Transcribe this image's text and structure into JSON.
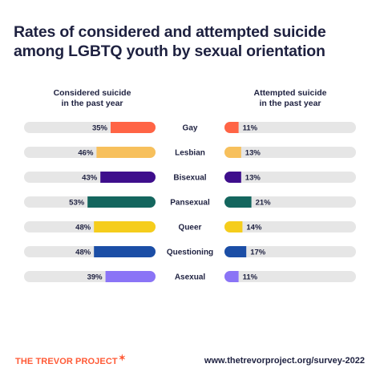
{
  "chart_data": {
    "type": "bar",
    "title": "Rates of considered and attempted suicide among LGBTQ youth by sexual orientation",
    "categories": [
      "Gay",
      "Lesbian",
      "Bisexual",
      "Pansexual",
      "Queer",
      "Questioning",
      "Asexual"
    ],
    "series": [
      {
        "name": "Considered suicide in the past year",
        "values": [
          35,
          46,
          43,
          53,
          48,
          48,
          39
        ],
        "labels": [
          "35%",
          "46%",
          "43%",
          "53%",
          "48%",
          "48%",
          "39%"
        ]
      },
      {
        "name": "Attempted suicide in the past year",
        "values": [
          11,
          13,
          13,
          21,
          14,
          17,
          11
        ],
        "labels": [
          "11%",
          "13%",
          "13%",
          "21%",
          "14%",
          "17%",
          "11%"
        ]
      }
    ],
    "colors": [
      "#ff6445",
      "#f7c05c",
      "#3e0e8c",
      "#14665e",
      "#f5cd1c",
      "#1b4ea6",
      "#8a74f6"
    ],
    "track_color": "#e6e6e6",
    "ylim": [
      0,
      100
    ]
  },
  "header": {
    "title": "Rates of considered and attempted suicide among LGBTQ youth by sexual orientation",
    "left_heading": "Considered suicide in the past year",
    "right_heading": "Attempted suicide in the past year"
  },
  "footer": {
    "logo": "THE TREVOR PROJECT",
    "url": "www.thetrevorproject.org/survey-2022"
  }
}
